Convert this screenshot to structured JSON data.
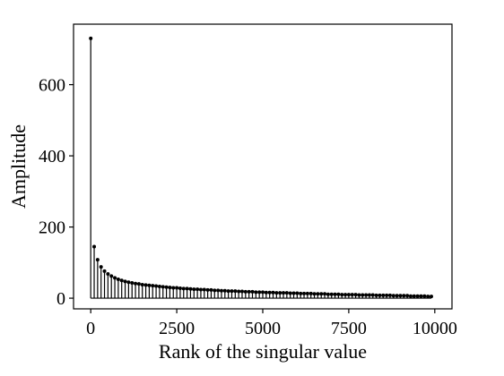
{
  "chart_data": {
    "type": "stem",
    "title": "",
    "xlabel": "Rank of the singular value",
    "ylabel": "Amplitude",
    "xlim": [
      -500,
      10500
    ],
    "ylim": [
      -30,
      770
    ],
    "xticks": [
      0,
      2500,
      5000,
      7500,
      10000
    ],
    "yticks": [
      0,
      200,
      400,
      600
    ],
    "xtick_labels": [
      "0",
      "2500",
      "5000",
      "7500",
      "10000"
    ],
    "ytick_labels": [
      "0",
      "200",
      "400",
      "600"
    ],
    "grid": false,
    "legend": "none",
    "marker": "dot",
    "color": "#000000",
    "series": [
      {
        "x": [
          0,
          100,
          200,
          300,
          400,
          500,
          600,
          700,
          800,
          900,
          1000,
          1100,
          1200,
          1300,
          1400,
          1500,
          1600,
          1700,
          1800,
          1900,
          2000,
          2100,
          2200,
          2300,
          2400,
          2500,
          2600,
          2700,
          2800,
          2900,
          3000,
          3100,
          3200,
          3300,
          3400,
          3500,
          3600,
          3700,
          3800,
          3900,
          4000,
          4100,
          4200,
          4300,
          4400,
          4500,
          4600,
          4700,
          4800,
          4900,
          5000,
          5100,
          5200,
          5300,
          5400,
          5500,
          5600,
          5700,
          5800,
          5900,
          6000,
          6100,
          6200,
          6300,
          6400,
          6500,
          6600,
          6700,
          6800,
          6900,
          7000,
          7100,
          7200,
          7300,
          7400,
          7500,
          7600,
          7700,
          7800,
          7900,
          8000,
          8100,
          8200,
          8300,
          8400,
          8500,
          8600,
          8700,
          8800,
          8900,
          9000,
          9100,
          9200,
          9300,
          9400,
          9500,
          9600,
          9700,
          9800,
          9900
        ],
        "y": [
          730,
          145,
          108,
          88,
          76,
          68,
          62,
          57,
          53,
          50,
          47,
          45,
          43,
          41,
          40,
          38,
          37,
          36,
          35,
          34,
          33,
          32,
          31,
          30,
          29,
          29,
          28,
          27,
          27,
          26,
          25,
          25,
          24,
          24,
          23,
          23,
          22,
          22,
          21,
          21,
          20,
          20,
          20,
          19,
          19,
          18,
          18,
          18,
          17,
          17,
          17,
          16,
          16,
          16,
          15,
          15,
          15,
          15,
          14,
          14,
          14,
          13,
          13,
          13,
          13,
          12,
          12,
          12,
          12,
          11,
          11,
          11,
          11,
          10,
          10,
          10,
          10,
          10,
          9,
          9,
          9,
          9,
          9,
          8,
          8,
          8,
          8,
          8,
          7,
          7,
          7,
          7,
          7,
          6,
          6,
          6,
          6,
          6,
          5,
          5
        ]
      }
    ]
  }
}
